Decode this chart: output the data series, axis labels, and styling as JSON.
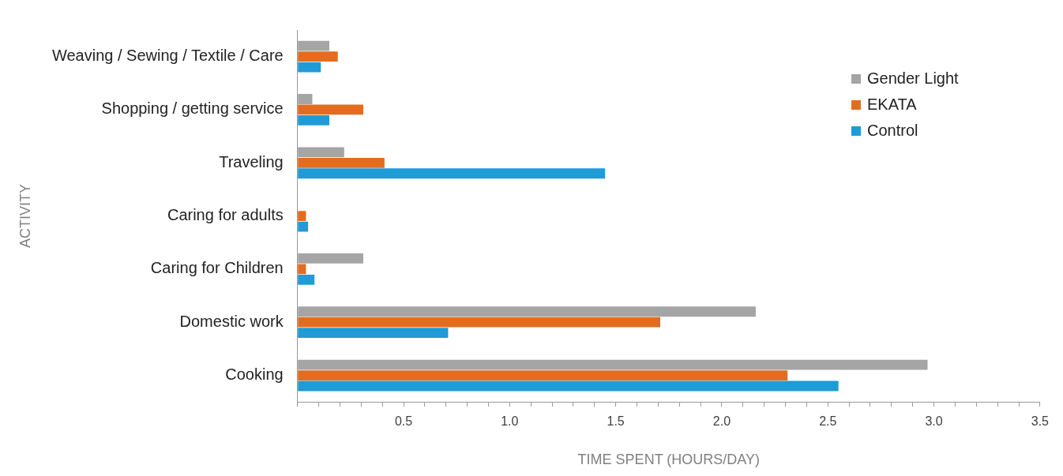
{
  "chart_data": {
    "type": "bar",
    "orientation": "horizontal",
    "xlabel": "TIME SPENT (HOURS/DAY)",
    "ylabel": "ACTIVITY",
    "categories": [
      "Weaving / Sewing / Textile / Care",
      "Shopping / getting service",
      "Traveling",
      "Caring for adults",
      "Caring for Children",
      "Domestic work",
      "Cooking"
    ],
    "series": [
      {
        "name": "Gender Light",
        "color": "#a5a5a5",
        "values": [
          0.15,
          0.07,
          0.22,
          null,
          0.31,
          2.16,
          2.97
        ]
      },
      {
        "name": "EKATA",
        "color": "#e46c1f",
        "values": [
          0.19,
          0.31,
          0.41,
          0.04,
          0.04,
          1.71,
          2.31
        ]
      },
      {
        "name": "Control",
        "color": "#1f9bd7",
        "values": [
          0.11,
          0.15,
          1.45,
          0.05,
          0.08,
          0.71,
          2.55
        ]
      }
    ],
    "xlim": [
      0,
      3.5
    ],
    "xticks": [
      {
        "value": 0,
        "label": null
      },
      {
        "value": 0.1,
        "label": null
      },
      {
        "value": 0.2,
        "label": null
      },
      {
        "value": 0.3,
        "label": null
      },
      {
        "value": 0.4,
        "label": null
      },
      {
        "value": 0.5,
        "label": "0.5"
      },
      {
        "value": 0.6,
        "label": null
      },
      {
        "value": 0.7,
        "label": null
      },
      {
        "value": 0.8,
        "label": null
      },
      {
        "value": 0.9,
        "label": null
      },
      {
        "value": 1,
        "label": "1.0"
      },
      {
        "value": 1.1,
        "label": null
      },
      {
        "value": 1.2,
        "label": null
      },
      {
        "value": 1.3,
        "label": null
      },
      {
        "value": 1.4,
        "label": null
      },
      {
        "value": 1.5,
        "label": "1.5"
      },
      {
        "value": 1.6,
        "label": null
      },
      {
        "value": 1.7,
        "label": null
      },
      {
        "value": 1.8,
        "label": null
      },
      {
        "value": 1.9,
        "label": null
      },
      {
        "value": 2,
        "label": "2.0"
      },
      {
        "value": 2.1,
        "label": null
      },
      {
        "value": 2.2,
        "label": null
      },
      {
        "value": 2.3,
        "label": null
      },
      {
        "value": 2.4,
        "label": null
      },
      {
        "value": 2.5,
        "label": "2.5"
      },
      {
        "value": 2.6,
        "label": null
      },
      {
        "value": 2.7,
        "label": null
      },
      {
        "value": 2.8,
        "label": null
      },
      {
        "value": 2.9,
        "label": null
      },
      {
        "value": 3,
        "label": "3.0"
      },
      {
        "value": 3.1,
        "label": null
      },
      {
        "value": 3.2,
        "label": null
      },
      {
        "value": 3.3,
        "label": null
      },
      {
        "value": 3.4,
        "label": null
      },
      {
        "value": 3.5,
        "label": "3.5"
      }
    ],
    "grid": false,
    "legend": "top right"
  }
}
